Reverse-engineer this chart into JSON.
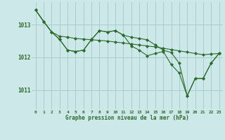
{
  "title": "Graphe pression niveau de la mer (hPa)",
  "bg_color": "#cce8e8",
  "grid_color": "#aacccc",
  "line_color": "#2d6a2d",
  "marker_color": "#2d6a2d",
  "tick_color": "#2d6a2d",
  "x_ticks": [
    0,
    1,
    2,
    3,
    4,
    5,
    6,
    7,
    8,
    9,
    10,
    11,
    12,
    13,
    14,
    15,
    16,
    17,
    18,
    19,
    20,
    21,
    22,
    23
  ],
  "ylim": [
    1010.4,
    1013.7
  ],
  "yticks": [
    1011,
    1012,
    1013
  ],
  "figsize": [
    3.2,
    2.0
  ],
  "dpi": 100,
  "series": [
    [
      1013.45,
      1013.1,
      1012.78,
      1012.65,
      1012.62,
      1012.58,
      1012.56,
      1012.54,
      1012.52,
      1012.5,
      1012.47,
      1012.44,
      1012.41,
      1012.38,
      1012.35,
      1012.32,
      1012.28,
      1012.24,
      1012.2,
      1012.16,
      1012.12,
      1012.08,
      1012.1,
      1012.12
    ],
    [
      1013.45,
      1013.1,
      1012.78,
      1012.55,
      1012.22,
      1012.18,
      1012.22,
      1012.55,
      1012.82,
      1012.78,
      1012.82,
      1012.68,
      1012.62,
      1012.58,
      1012.54,
      1012.38,
      1012.22,
      1012.15,
      1011.82,
      1010.82,
      1011.35,
      1011.35,
      1011.82,
      1012.12
    ],
    [
      1013.45,
      1013.1,
      1012.78,
      1012.55,
      1012.22,
      1012.18,
      1012.22,
      1012.55,
      1012.82,
      1012.78,
      1012.82,
      1012.68,
      1012.35,
      1012.22,
      1012.05,
      1012.12,
      1012.18,
      1011.78,
      1011.52,
      1010.82,
      1011.35,
      1011.35,
      1011.82,
      1012.12
    ]
  ]
}
